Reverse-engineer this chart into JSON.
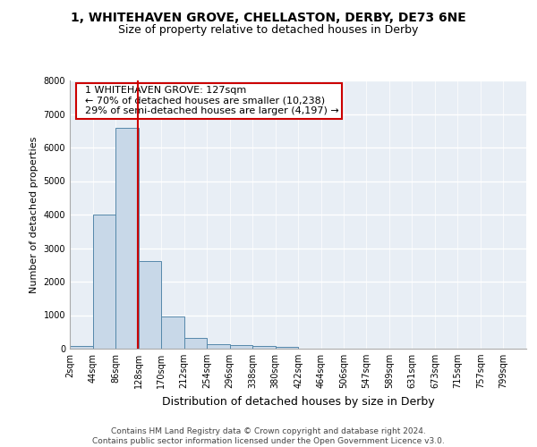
{
  "title_line1": "1, WHITEHAVEN GROVE, CHELLASTON, DERBY, DE73 6NE",
  "title_line2": "Size of property relative to detached houses in Derby",
  "xlabel": "Distribution of detached houses by size in Derby",
  "ylabel": "Number of detached properties",
  "footer_line1": "Contains HM Land Registry data © Crown copyright and database right 2024.",
  "footer_line2": "Contains public sector information licensed under the Open Government Licence v3.0.",
  "annotation_line1": "1 WHITEHAVEN GROVE: 127sqm",
  "annotation_line2": "← 70% of detached houses are smaller (10,238)",
  "annotation_line3": "29% of semi-detached houses are larger (4,197) →",
  "property_size": 127,
  "bar_edges": [
    2,
    44,
    86,
    128,
    170,
    212,
    254,
    296,
    338,
    380,
    422,
    464,
    506,
    547,
    589,
    631,
    673,
    715,
    757,
    799,
    841
  ],
  "bar_heights": [
    75,
    4000,
    6600,
    2620,
    960,
    320,
    145,
    120,
    75,
    60,
    0,
    0,
    0,
    0,
    0,
    0,
    0,
    0,
    0,
    0
  ],
  "bar_color": "#c8d8e8",
  "bar_edge_color": "#5588aa",
  "vline_color": "#cc0000",
  "vline_x": 127,
  "annotation_box_color": "#cc0000",
  "background_color": "#e8eef5",
  "ylim": [
    0,
    8000
  ],
  "yticks": [
    0,
    1000,
    2000,
    3000,
    4000,
    5000,
    6000,
    7000,
    8000
  ],
  "grid_color": "#ffffff",
  "title_fontsize": 10,
  "subtitle_fontsize": 9,
  "axis_label_fontsize": 9,
  "tick_label_fontsize": 7,
  "annotation_fontsize": 8,
  "footer_fontsize": 6.5,
  "ylabel_fontsize": 8
}
